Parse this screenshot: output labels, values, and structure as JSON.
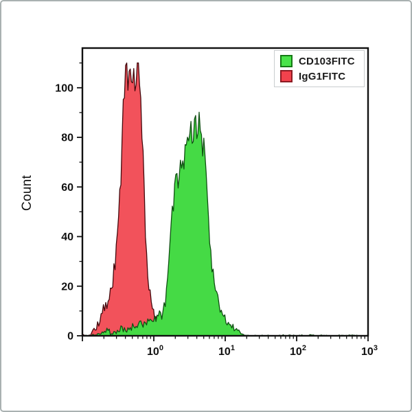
{
  "legend": {
    "items": [
      {
        "label": "CD103FITC",
        "fill": "#4ae34a",
        "stroke": "#157a15"
      },
      {
        "label": "IgG1FITC",
        "fill": "#f2424d",
        "stroke": "#8c1a22"
      }
    ]
  },
  "chart_data": {
    "type": "area",
    "subtype": "flow-cytometry-overlay-histogram",
    "title": "",
    "xlabel": "",
    "ylabel": "Count",
    "x_scale": "log10",
    "xlim": [
      0.1,
      1000
    ],
    "ylim": [
      0,
      116
    ],
    "grid": false,
    "legend_position": "top-right-inside",
    "y_major_ticks": [
      0,
      20,
      40,
      60,
      80,
      100
    ],
    "y_minor_ticks": [
      10,
      30,
      50,
      70,
      90,
      110
    ],
    "x_decade_exponents": [
      0,
      1,
      2,
      3
    ],
    "frame_color": "#101010",
    "series": [
      {
        "name": "IgG1FITC",
        "fill": "#f2525b",
        "stroke": "#43090d",
        "peak_x": 0.55,
        "peak_count": 110,
        "noise": {
          "seed": 7,
          "base": 1.4,
          "scale": 0.1,
          "cap": 110
        },
        "points": [
          [
            0.1,
            0
          ],
          [
            0.125,
            0
          ],
          [
            0.135,
            2
          ],
          [
            0.145,
            4
          ],
          [
            0.155,
            3
          ],
          [
            0.165,
            6
          ],
          [
            0.175,
            5
          ],
          [
            0.185,
            9
          ],
          [
            0.195,
            8
          ],
          [
            0.205,
            12
          ],
          [
            0.215,
            11
          ],
          [
            0.225,
            15
          ],
          [
            0.235,
            14
          ],
          [
            0.25,
            19
          ],
          [
            0.265,
            22
          ],
          [
            0.28,
            27
          ],
          [
            0.295,
            32
          ],
          [
            0.31,
            40
          ],
          [
            0.325,
            50
          ],
          [
            0.34,
            62
          ],
          [
            0.355,
            74
          ],
          [
            0.37,
            84
          ],
          [
            0.385,
            93
          ],
          [
            0.4,
            98
          ],
          [
            0.415,
            101
          ],
          [
            0.43,
            97
          ],
          [
            0.445,
            103
          ],
          [
            0.46,
            99
          ],
          [
            0.475,
            104
          ],
          [
            0.49,
            100
          ],
          [
            0.51,
            105
          ],
          [
            0.53,
            101
          ],
          [
            0.55,
            104
          ],
          [
            0.57,
            100
          ],
          [
            0.59,
            102
          ],
          [
            0.61,
            97
          ],
          [
            0.63,
            99
          ],
          [
            0.65,
            93
          ],
          [
            0.67,
            88
          ],
          [
            0.69,
            81
          ],
          [
            0.71,
            71
          ],
          [
            0.73,
            60
          ],
          [
            0.75,
            50
          ],
          [
            0.77,
            41
          ],
          [
            0.79,
            34
          ],
          [
            0.82,
            27
          ],
          [
            0.85,
            21
          ],
          [
            0.89,
            16
          ],
          [
            0.93,
            12
          ],
          [
            0.98,
            9
          ],
          [
            1.05,
            7
          ],
          [
            1.15,
            5
          ],
          [
            1.3,
            3
          ],
          [
            1.5,
            2
          ],
          [
            1.7,
            1
          ],
          [
            1.95,
            1
          ],
          [
            2.2,
            0
          ]
        ]
      },
      {
        "name": "CD103FITC",
        "fill": "#45da45",
        "stroke": "#0f4f12",
        "peak_x": 3.9,
        "peak_count": 92,
        "noise": {
          "seed": 21,
          "base": 1.1,
          "scale": 0.095,
          "cap": 93
        },
        "points": [
          [
            0.1,
            0
          ],
          [
            0.14,
            0
          ],
          [
            0.18,
            1
          ],
          [
            0.22,
            2
          ],
          [
            0.26,
            1
          ],
          [
            0.31,
            2
          ],
          [
            0.36,
            3
          ],
          [
            0.41,
            2
          ],
          [
            0.46,
            3
          ],
          [
            0.52,
            4
          ],
          [
            0.58,
            3
          ],
          [
            0.64,
            4
          ],
          [
            0.7,
            4
          ],
          [
            0.76,
            5
          ],
          [
            0.82,
            4
          ],
          [
            0.88,
            6
          ],
          [
            0.94,
            5
          ],
          [
            1.0,
            6
          ],
          [
            1.06,
            7
          ],
          [
            1.12,
            6
          ],
          [
            1.18,
            8
          ],
          [
            1.24,
            9
          ],
          [
            1.3,
            8
          ],
          [
            1.38,
            11
          ],
          [
            1.47,
            14
          ],
          [
            1.56,
            21
          ],
          [
            1.65,
            34
          ],
          [
            1.75,
            48
          ],
          [
            1.85,
            55
          ],
          [
            2.0,
            60
          ],
          [
            2.2,
            63
          ],
          [
            2.5,
            67
          ],
          [
            2.8,
            74
          ],
          [
            3.1,
            79
          ],
          [
            3.4,
            83
          ],
          [
            3.7,
            86
          ],
          [
            3.9,
            88
          ],
          [
            4.1,
            85
          ],
          [
            4.4,
            82
          ],
          [
            4.7,
            80
          ],
          [
            4.9,
            78
          ],
          [
            5.3,
            68
          ],
          [
            5.7,
            54
          ],
          [
            6.1,
            38
          ],
          [
            6.5,
            28
          ],
          [
            7.0,
            21
          ],
          [
            7.6,
            16
          ],
          [
            8.4,
            12
          ],
          [
            9.4,
            8
          ],
          [
            10.5,
            6
          ],
          [
            12.0,
            4
          ],
          [
            13.5,
            3
          ],
          [
            15.0,
            2
          ],
          [
            16.5,
            1
          ],
          [
            17.8,
            0
          ],
          [
            30,
            0
          ],
          [
            100,
            0
          ],
          [
            1000,
            0
          ]
        ]
      }
    ]
  }
}
